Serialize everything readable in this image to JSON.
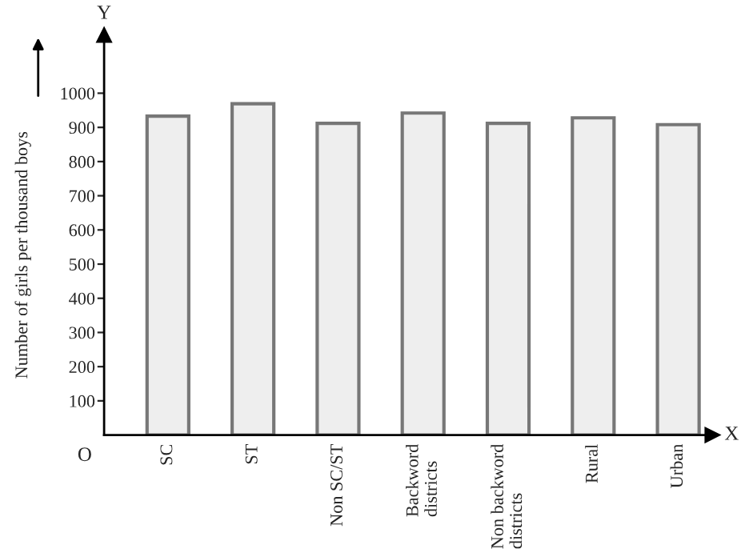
{
  "chart_data": {
    "type": "bar",
    "ylabel": "Number of girls per thousand boys",
    "categories": [
      "SC",
      "ST",
      "Non SC/ST",
      "Backword\ndistricts",
      "Non backword\ndistricts",
      "Rural",
      "Urban"
    ],
    "values": [
      933,
      969,
      912,
      942,
      912,
      928,
      908
    ],
    "color": "#eeeeee",
    "ylim": [
      0,
      1170
    ],
    "yticks": [
      100,
      200,
      300,
      400,
      500,
      600,
      700,
      800,
      900,
      1000
    ],
    "grid": false,
    "annotations": [
      "O",
      "X",
      "Y"
    ]
  }
}
